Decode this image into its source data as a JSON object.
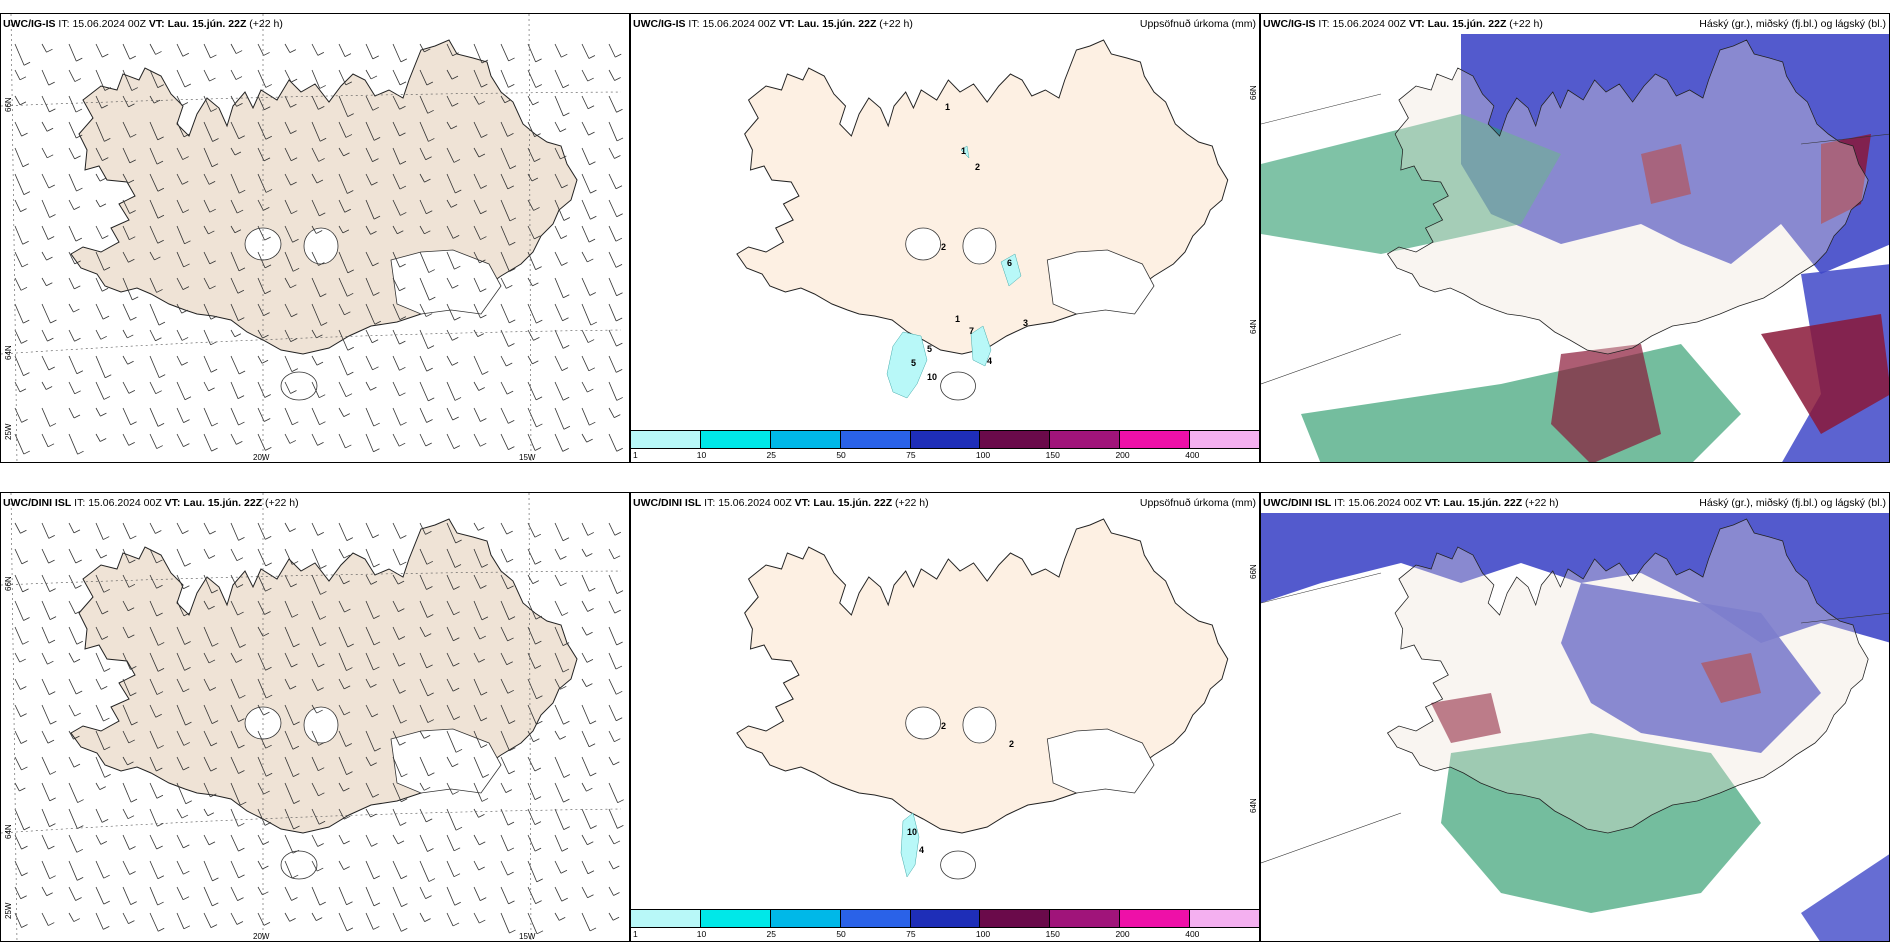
{
  "rows": [
    {
      "model": "UWC/IG-IS",
      "it_label": "IT:",
      "it_value": "15.06.2024 00Z",
      "vt_label": "VT:",
      "vt_value": "Lau. 15.jún. 22Z",
      "lead": "(+22 h)"
    },
    {
      "model": "UWC/DINI ISL",
      "it_label": "IT:",
      "it_value": "15.06.2024 00Z",
      "vt_label": "VT:",
      "vt_value": "Lau. 15.jún. 22Z",
      "lead": "(+22 h)"
    }
  ],
  "precip_title": "Uppsöfnuð úrkoma (mm)",
  "cloud_title": "Háský (gr.), miðský (fj.bl.) og lágský (bl.)",
  "grid_labels": {
    "lat_66": "66N",
    "lat_64": "64N",
    "lon_25": "25W",
    "lon_20": "20W",
    "lon_15": "15W"
  },
  "colorbar": {
    "ticks": [
      "1",
      "10",
      "25",
      "50",
      "75",
      "100",
      "150",
      "200",
      "400"
    ],
    "colors": [
      "#b8f8f8",
      "#00e8e8",
      "#00b8e8",
      "#2a62e8",
      "#1e2eb8",
      "#6a0a4a",
      "#a0147a",
      "#ee10a8",
      "#f4b0f0"
    ]
  },
  "precip_labels_top": [
    "1",
    "1",
    "2",
    "2",
    "6",
    "1",
    "7",
    "3",
    "4",
    "5",
    "10",
    "5"
  ],
  "precip_labels_bottom": [
    "2",
    "2",
    "10",
    "4"
  ],
  "colors": {
    "land_wind": "#efe3d6",
    "land_precip": "#fdf0e3",
    "cloud_high": "#2a9a6a",
    "cloud_mid": "#8a1838",
    "cloud_low": "#4048c8"
  }
}
